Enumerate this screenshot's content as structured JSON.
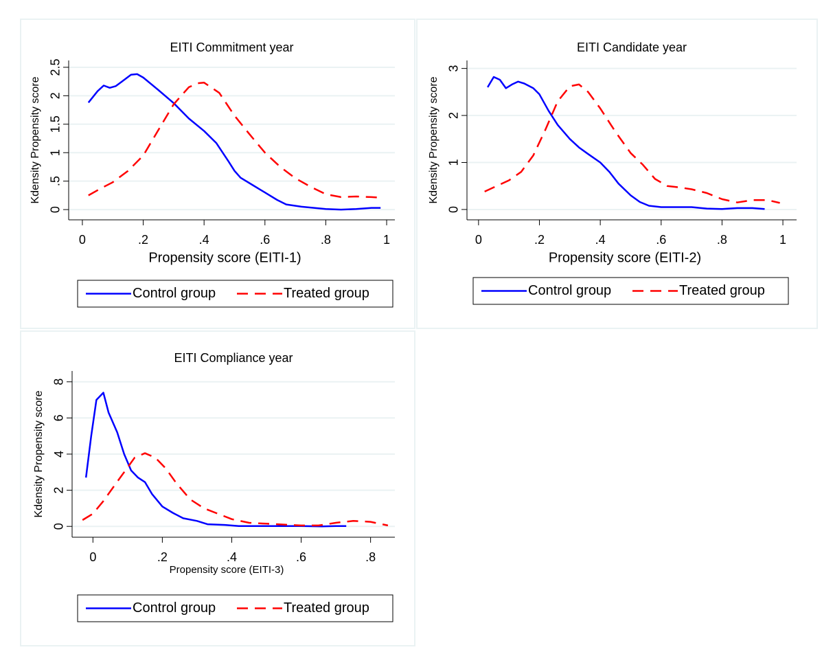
{
  "chart_data": [
    {
      "type": "line",
      "title": "EITI Commitment year",
      "xlabel": "Propensity score (EITI-1)",
      "ylabel": "Kdensity Propensity score",
      "xlim": [
        -0.045,
        1.027
      ],
      "ylim": [
        -0.18,
        2.62
      ],
      "grid": true,
      "xticks": [
        0,
        {
          "value": 0.2,
          "label": ".2"
        },
        {
          "value": 0.4,
          "label": ".4"
        },
        {
          "value": 0.6,
          "label": ".6"
        },
        {
          "value": 0.8,
          "label": ".8"
        },
        1
      ],
      "yticks": [
        0,
        {
          "value": 0.5,
          "label": ".5"
        },
        1,
        1.5,
        2,
        2.5
      ],
      "series": [
        {
          "name": "Control group",
          "color": "#0000ff",
          "linestyle": "solid",
          "x": [
            0.02,
            0.05,
            0.07,
            0.09,
            0.11,
            0.13,
            0.16,
            0.18,
            0.2,
            0.25,
            0.3,
            0.35,
            0.4,
            0.44,
            0.48,
            0.5,
            0.52,
            0.56,
            0.6,
            0.64,
            0.67,
            0.72,
            0.8,
            0.85,
            0.9,
            0.95,
            0.98
          ],
          "values": [
            1.88,
            2.08,
            2.18,
            2.14,
            2.17,
            2.25,
            2.37,
            2.38,
            2.32,
            2.1,
            1.87,
            1.6,
            1.38,
            1.17,
            0.85,
            0.68,
            0.56,
            0.43,
            0.3,
            0.17,
            0.09,
            0.05,
            0.01,
            0,
            0.01,
            0.03,
            0.03
          ]
        },
        {
          "name": "Treated group",
          "color": "#ff0000",
          "linestyle": "dashed",
          "x": [
            0.02,
            0.06,
            0.1,
            0.15,
            0.2,
            0.25,
            0.3,
            0.35,
            0.38,
            0.4,
            0.45,
            0.5,
            0.55,
            0.6,
            0.65,
            0.7,
            0.75,
            0.8,
            0.85,
            0.9,
            0.95,
            0.98
          ],
          "values": [
            0.25,
            0.37,
            0.48,
            0.68,
            0.95,
            1.4,
            1.85,
            2.15,
            2.22,
            2.23,
            2.05,
            1.65,
            1.32,
            1.0,
            0.75,
            0.55,
            0.4,
            0.27,
            0.22,
            0.23,
            0.22,
            0.21
          ]
        }
      ]
    },
    {
      "type": "line",
      "title": "EITI Candidate year",
      "xlabel": "Propensity score (EITI-2)",
      "ylabel": "Kdensity Propensity score",
      "xlim": [
        -0.038,
        1.045
      ],
      "ylim": [
        -0.22,
        3.17
      ],
      "grid": true,
      "xticks": [
        0,
        {
          "value": 0.2,
          "label": ".2"
        },
        {
          "value": 0.4,
          "label": ".4"
        },
        {
          "value": 0.6,
          "label": ".6"
        },
        {
          "value": 0.8,
          "label": ".8"
        },
        1
      ],
      "yticks": [
        0,
        1,
        2,
        3
      ],
      "series": [
        {
          "name": "Control group",
          "color": "#0000ff",
          "linestyle": "solid",
          "x": [
            0.03,
            0.05,
            0.07,
            0.09,
            0.11,
            0.13,
            0.15,
            0.18,
            0.2,
            0.23,
            0.26,
            0.3,
            0.33,
            0.36,
            0.4,
            0.43,
            0.46,
            0.5,
            0.53,
            0.56,
            0.6,
            0.7,
            0.75,
            0.8,
            0.85,
            0.9,
            0.94
          ],
          "values": [
            2.6,
            2.82,
            2.76,
            2.58,
            2.66,
            2.72,
            2.68,
            2.58,
            2.45,
            2.1,
            1.8,
            1.5,
            1.32,
            1.18,
            1.0,
            0.8,
            0.55,
            0.3,
            0.16,
            0.08,
            0.05,
            0.05,
            0.02,
            0.01,
            0.03,
            0.03,
            0.01
          ]
        },
        {
          "name": "Treated group",
          "color": "#ff0000",
          "linestyle": "dashed",
          "x": [
            0.02,
            0.06,
            0.1,
            0.14,
            0.18,
            0.22,
            0.26,
            0.3,
            0.33,
            0.36,
            0.4,
            0.45,
            0.5,
            0.54,
            0.58,
            0.62,
            0.66,
            0.7,
            0.75,
            0.8,
            0.85,
            0.9,
            0.95,
            0.99
          ],
          "values": [
            0.38,
            0.5,
            0.62,
            0.8,
            1.15,
            1.7,
            2.3,
            2.62,
            2.66,
            2.5,
            2.15,
            1.65,
            1.2,
            0.95,
            0.65,
            0.5,
            0.47,
            0.43,
            0.35,
            0.22,
            0.15,
            0.2,
            0.2,
            0.14
          ]
        }
      ]
    },
    {
      "type": "line",
      "title": "EITI Compliance year",
      "xlabel": "Propensity score (EITI-3)",
      "ylabel": "Kdensity Propensity score",
      "xlim": [
        -0.06,
        0.87
      ],
      "ylim": [
        -0.6,
        8.6
      ],
      "grid": true,
      "xticks": [
        0,
        {
          "value": 0.2,
          "label": ".2"
        },
        {
          "value": 0.4,
          "label": ".4"
        },
        {
          "value": 0.6,
          "label": ".6"
        },
        {
          "value": 0.8,
          "label": ".8"
        }
      ],
      "yticks": [
        0,
        2,
        4,
        6,
        8
      ],
      "series": [
        {
          "name": "Control group",
          "color": "#0000ff",
          "linestyle": "solid",
          "x": [
            -0.02,
            -0.005,
            0.01,
            0.03,
            0.045,
            0.07,
            0.09,
            0.11,
            0.13,
            0.15,
            0.17,
            0.2,
            0.23,
            0.26,
            0.3,
            0.33,
            0.38,
            0.42,
            0.5,
            0.6,
            0.66,
            0.7,
            0.73
          ],
          "values": [
            2.7,
            5,
            7,
            7.4,
            6.3,
            5.2,
            4,
            3.1,
            2.7,
            2.45,
            1.8,
            1.1,
            0.75,
            0.45,
            0.3,
            0.12,
            0.08,
            0.02,
            0.02,
            0.02,
            0,
            0.02,
            0.02
          ]
        },
        {
          "name": "Treated group",
          "color": "#ff0000",
          "linestyle": "dashed",
          "x": [
            -0.03,
            0,
            0.03,
            0.06,
            0.09,
            0.12,
            0.15,
            0.18,
            0.21,
            0.24,
            0.28,
            0.32,
            0.36,
            0.4,
            0.45,
            0.5,
            0.55,
            0.6,
            0.65,
            0.7,
            0.75,
            0.8,
            0.85
          ],
          "values": [
            0.35,
            0.7,
            1.4,
            2.2,
            3.0,
            3.8,
            4.05,
            3.8,
            3.2,
            2.4,
            1.5,
            1.0,
            0.7,
            0.4,
            0.2,
            0.15,
            0.1,
            0.05,
            0.05,
            0.2,
            0.3,
            0.25,
            0.05
          ]
        }
      ]
    }
  ]
}
